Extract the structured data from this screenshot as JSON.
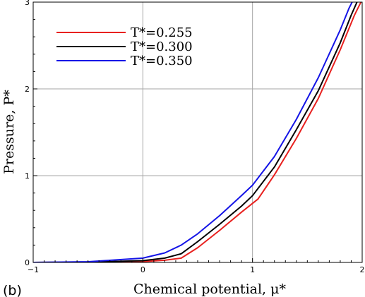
{
  "panel_label": "(b)",
  "chart_data": {
    "type": "line",
    "title": "",
    "xlabel": "Chemical potential, μ*",
    "ylabel": "Pressure, P*",
    "xlim": [
      -1,
      2
    ],
    "ylim": [
      0,
      3
    ],
    "xticks": [
      -1,
      0,
      1,
      2
    ],
    "xtick_labels": [
      "−1",
      "0",
      "1",
      "2"
    ],
    "yticks": [
      0,
      1,
      2,
      3
    ],
    "ytick_labels": [
      "0",
      "1",
      "2",
      "3"
    ],
    "grid": true,
    "legend_position": "top-left",
    "series": [
      {
        "name": "T*=0.255",
        "color": "#e8211f",
        "x": [
          -1.0,
          -0.5,
          0.0,
          0.2,
          0.35,
          0.5,
          0.7,
          0.9,
          1.05,
          1.2,
          1.4,
          1.6,
          1.8,
          1.93,
          2.02
        ],
        "y": [
          0.0,
          0.002,
          0.01,
          0.025,
          0.05,
          0.17,
          0.37,
          0.58,
          0.73,
          1.01,
          1.43,
          1.89,
          2.45,
          2.85,
          3.08
        ]
      },
      {
        "name": "T*=0.300",
        "color": "#000000",
        "x": [
          -1.0,
          -0.5,
          0.0,
          0.2,
          0.35,
          0.5,
          0.7,
          0.9,
          1.0,
          1.2,
          1.4,
          1.6,
          1.8,
          1.9,
          1.97
        ],
        "y": [
          0.0,
          0.004,
          0.02,
          0.05,
          0.1,
          0.24,
          0.44,
          0.65,
          0.77,
          1.1,
          1.53,
          1.98,
          2.53,
          2.85,
          3.05
        ]
      },
      {
        "name": "T*=0.350",
        "color": "#1414e6",
        "x": [
          -1.0,
          -0.5,
          0.0,
          0.2,
          0.35,
          0.5,
          0.7,
          0.9,
          1.0,
          1.2,
          1.4,
          1.6,
          1.8,
          1.88,
          1.94
        ],
        "y": [
          0.0,
          0.008,
          0.05,
          0.11,
          0.2,
          0.33,
          0.54,
          0.77,
          0.89,
          1.22,
          1.65,
          2.13,
          2.68,
          2.93,
          3.08
        ]
      }
    ]
  }
}
